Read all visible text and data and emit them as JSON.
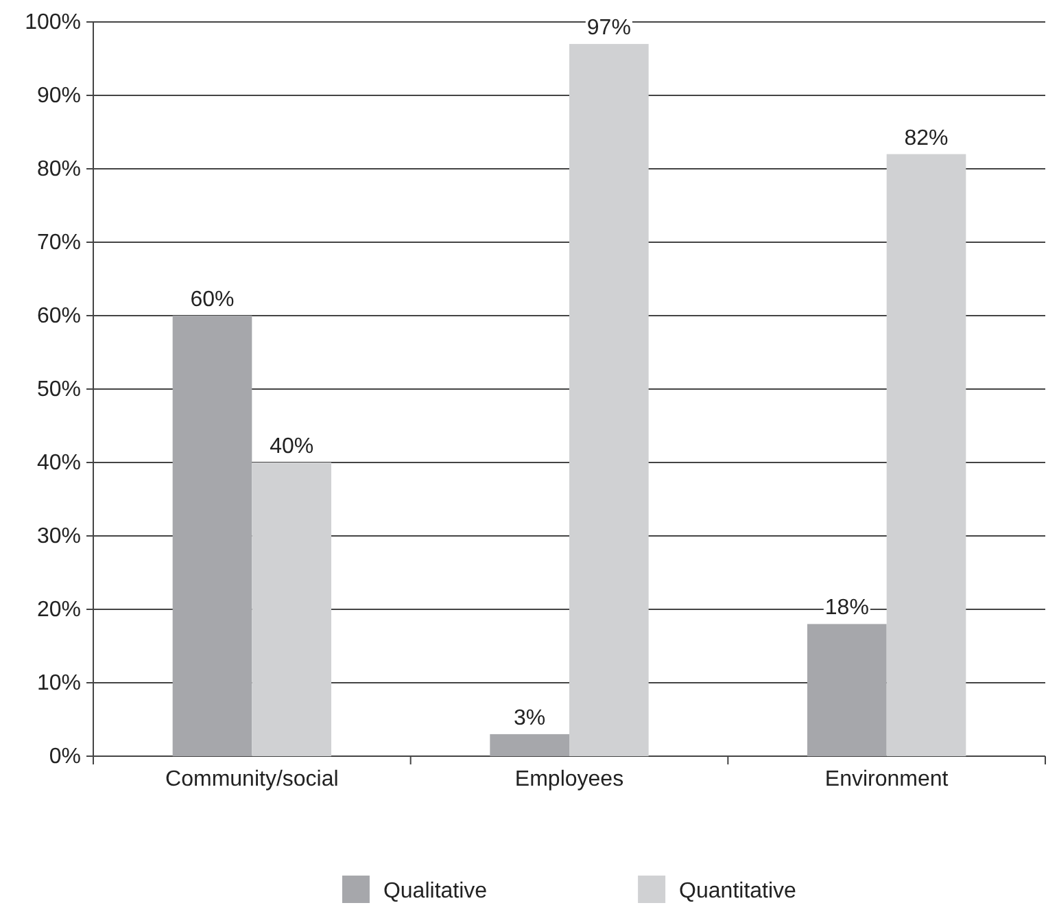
{
  "chart_data": {
    "type": "bar",
    "categories": [
      "Community/social",
      "Employees",
      "Environment"
    ],
    "series": [
      {
        "name": "Qualitative",
        "color": "#a6a7ab",
        "values": [
          60,
          3,
          18
        ],
        "value_labels": [
          "60%",
          "3%",
          "18%"
        ]
      },
      {
        "name": "Quantitative",
        "color": "#d0d1d3",
        "values": [
          40,
          97,
          82
        ],
        "value_labels": [
          "40%",
          "97%",
          "82%"
        ]
      }
    ],
    "ylim": [
      0,
      100
    ],
    "yticks": [
      {
        "value": 0,
        "label": "0%"
      },
      {
        "value": 10,
        "label": "10%"
      },
      {
        "value": 20,
        "label": "20%"
      },
      {
        "value": 30,
        "label": "30%"
      },
      {
        "value": 40,
        "label": "40%"
      },
      {
        "value": 50,
        "label": "50%"
      },
      {
        "value": 60,
        "label": "60%"
      },
      {
        "value": 70,
        "label": "70%"
      },
      {
        "value": 80,
        "label": "80%"
      },
      {
        "value": 90,
        "label": "90%"
      },
      {
        "value": 100,
        "label": "100%"
      }
    ],
    "grid": "y",
    "legend": "bottom"
  }
}
